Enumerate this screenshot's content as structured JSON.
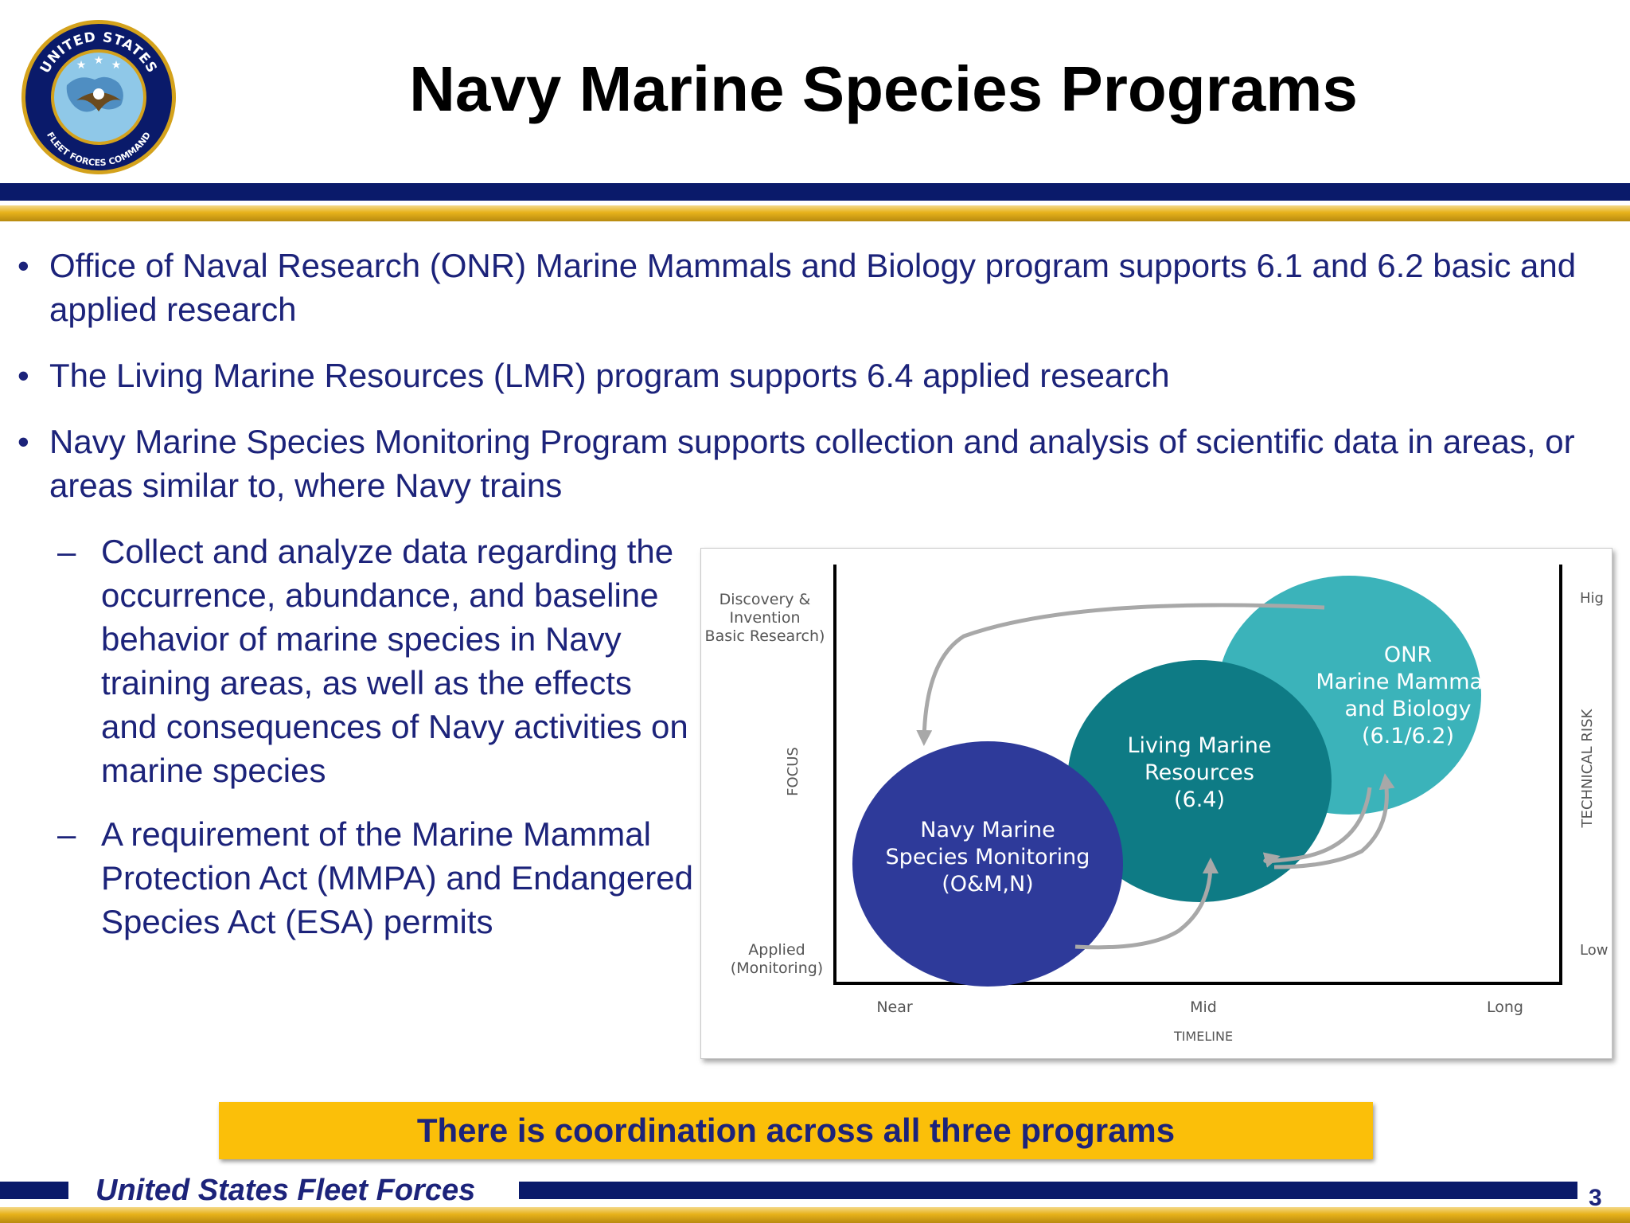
{
  "slide": {
    "title": "Navy Marine Species Programs",
    "page_number": "3"
  },
  "logo": {
    "text_top": "UNITED STATES",
    "text_bottom": "FLEET FORCES COMMAND",
    "colors": {
      "ring": "#0a1a6a",
      "gold": "#d4a21c",
      "globe": "#7fbde0"
    }
  },
  "bullets": [
    {
      "marker": "•",
      "text": "Office of Naval Research (ONR) Marine Mammals and Biology program supports 6.1 and 6.2 basic and applied research"
    },
    {
      "marker": "•",
      "text": "The Living Marine Resources (LMR) program supports 6.4 applied research"
    },
    {
      "marker": "•",
      "text": "Navy Marine Species Monitoring Program supports collection and analysis of scientific data in areas, or areas similar to, where Navy trains"
    }
  ],
  "sub_bullets": [
    {
      "marker": "–",
      "text": "Collect and analyze data regarding the occurrence, abundance, and baseline behavior of marine species in Navy training areas, as well as the effects and consequences of Navy activities on marine species"
    },
    {
      "marker": "–",
      "text": "A requirement of the Marine Mammal Protection Act (MMPA) and Endangered Species Act (ESA) permits"
    }
  ],
  "diagram": {
    "left_top_label": [
      "Discovery &",
      "Invention",
      "Basic Research)"
    ],
    "left_bottom_label": [
      "Applied",
      "(Monitoring)"
    ],
    "left_axis_label": "FOCUS",
    "right_axis_label": "TECHNICAL RISK",
    "right_top_label": "Hig",
    "right_bottom_label": "Low",
    "x_ticks": [
      "Near",
      "Mid",
      "Long"
    ],
    "x_axis_label": "TIMELINE",
    "circles": [
      {
        "lines": [
          "Navy Marine",
          "Species Monitoring",
          "(O&M,N)"
        ],
        "color": "#2e3a9a"
      },
      {
        "lines": [
          "Living Marine",
          "Resources",
          "(6.4)"
        ],
        "color": "#0e7b85"
      },
      {
        "lines": [
          "ONR",
          "Marine Mammals",
          "and Biology",
          "(6.1/6.2)"
        ],
        "color": "#3bb3ba"
      }
    ],
    "arrow_color": "#a8a8a8"
  },
  "banner": {
    "text": "There is coordination across all three programs",
    "color": "#fbbf09"
  },
  "footer": {
    "text": "United States Fleet Forces"
  }
}
